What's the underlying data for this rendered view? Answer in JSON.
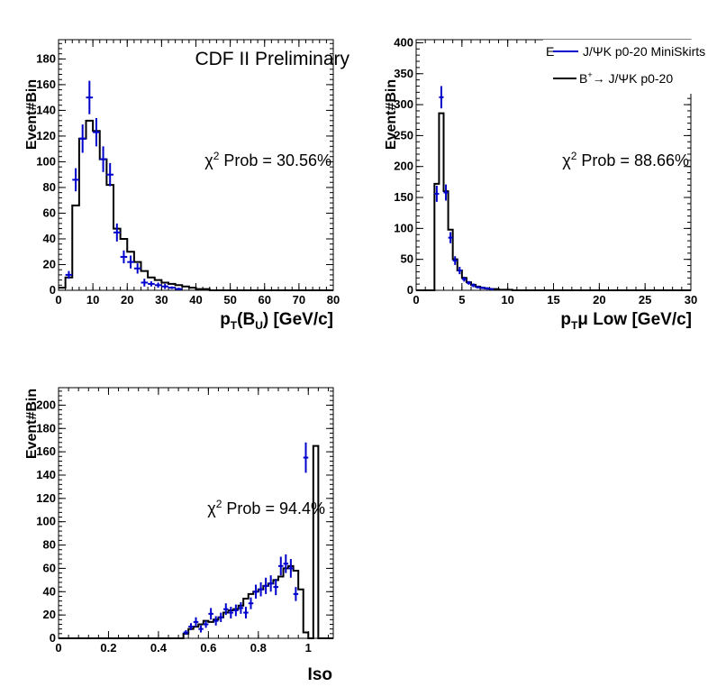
{
  "colors": {
    "mc_line": "#000000",
    "data_points": "#0000cc"
  },
  "legend": {
    "entry_data": "J/ΨK p0-20 MiniSkirts",
    "entry_mc_prefix": "B",
    "entry_mc_super": "+",
    "entry_mc_suffix": "→ J/ΨK p0-20",
    "clipped_char": "E"
  },
  "chart_data": [
    {
      "type": "histogram",
      "title": "CDF II Preliminary",
      "xlabel": {
        "p": "p",
        "sub": "T",
        "mid": "(B",
        "sub2": "U",
        "end": ") [GeV/c]"
      },
      "ylabel": "Event#Bin",
      "annotation": {
        "chi": "χ",
        "sup": "2",
        "text": " Prob = 30.56%"
      },
      "xlim": [
        0,
        80
      ],
      "ylim": [
        0,
        195
      ],
      "xticks": [
        0,
        10,
        20,
        30,
        40,
        50,
        60,
        70,
        80
      ],
      "yticks": [
        0,
        20,
        40,
        60,
        80,
        100,
        120,
        140,
        160,
        180
      ],
      "bin_edges_start": 0,
      "bin_width": 2,
      "series": [
        {
          "name": "B⁺→ J/ΨK p0-20",
          "style": "step",
          "values": [
            2,
            10,
            66,
            118,
            132,
            124,
            102,
            82,
            48,
            40,
            30,
            22,
            15,
            10,
            8,
            6,
            5,
            4,
            3,
            2,
            1,
            1,
            0,
            0,
            0,
            0,
            0,
            0,
            0,
            0,
            0,
            0,
            0,
            0,
            0,
            0,
            0,
            0,
            0,
            0
          ]
        },
        {
          "name": "J/ΨK p0-20 MiniSkirts",
          "style": "points",
          "x": [
            3,
            5,
            7,
            9,
            11,
            13,
            15,
            17,
            19,
            21,
            23,
            25,
            27,
            29,
            31,
            33,
            35
          ],
          "y": [
            12,
            86,
            118,
            150,
            123,
            102,
            90,
            45,
            26,
            22,
            17,
            6,
            5,
            4,
            3,
            2,
            1
          ],
          "err": [
            3,
            9,
            11,
            13,
            11,
            10,
            9,
            7,
            5,
            5,
            4,
            3,
            2,
            2,
            2,
            1,
            1
          ]
        }
      ]
    },
    {
      "type": "histogram",
      "title": "",
      "xlabel": {
        "p": "p",
        "sub": "T",
        "mid": "μ Low [GeV/c]"
      },
      "ylabel": "Event#Bin",
      "annotation": {
        "chi": "χ",
        "sup": "2",
        "text": " Prob = 88.66%"
      },
      "xlim": [
        0,
        30
      ],
      "ylim": [
        0,
        405
      ],
      "xticks": [
        0,
        5,
        10,
        15,
        20,
        25,
        30
      ],
      "yticks": [
        0,
        50,
        100,
        150,
        200,
        250,
        300,
        350,
        400
      ],
      "bin_edges_start": 0,
      "bin_width": 0.5,
      "series": [
        {
          "name": "B⁺→ J/ΨK p0-20",
          "style": "step",
          "values": [
            0,
            0,
            0,
            0,
            172,
            286,
            160,
            98,
            50,
            32,
            20,
            13,
            9,
            6,
            4,
            3,
            2,
            2,
            1,
            1,
            1,
            0,
            0,
            0,
            0,
            0,
            0,
            0,
            0,
            0,
            0,
            0,
            0,
            0,
            0,
            0,
            0,
            0,
            0,
            0,
            0,
            0,
            0,
            0,
            0,
            0,
            0,
            0,
            0,
            0,
            0,
            0,
            0,
            0,
            0,
            0,
            0,
            0,
            0,
            0
          ]
        },
        {
          "name": "J/ΨK p0-20 MiniSkirts",
          "style": "points",
          "x": [
            2.25,
            2.75,
            3.25,
            3.75,
            4.25,
            4.75,
            5.25,
            5.75,
            6.25,
            6.75,
            7.25,
            7.75,
            8.25
          ],
          "y": [
            156,
            312,
            158,
            85,
            48,
            32,
            18,
            12,
            8,
            5,
            4,
            3,
            2
          ],
          "err": [
            13,
            18,
            13,
            9,
            7,
            6,
            4,
            3,
            3,
            2,
            2,
            2,
            1
          ]
        }
      ]
    },
    {
      "type": "histogram",
      "title": "",
      "xlabel": {
        "p": "Iso"
      },
      "ylabel": "Event#Bin",
      "annotation": {
        "chi": "χ",
        "sup": "2",
        "text": " Prob = 94.4%"
      },
      "xlim": [
        0,
        1.1
      ],
      "ylim": [
        0,
        215
      ],
      "xticks": [
        0,
        0.2,
        0.4,
        0.6,
        0.8,
        1
      ],
      "yticks": [
        0,
        20,
        40,
        60,
        80,
        100,
        120,
        140,
        160,
        180,
        200
      ],
      "bin_edges_start": 0,
      "bin_width": 0.02,
      "series": [
        {
          "name": "B⁺→ J/ΨK p0-20",
          "style": "step",
          "values": [
            0,
            0,
            0,
            0,
            0,
            0,
            0,
            0,
            0,
            0,
            0,
            0,
            0,
            0,
            0,
            0,
            0,
            0,
            0,
            0,
            0,
            0,
            0,
            0,
            0,
            4,
            8,
            10,
            12,
            15,
            14,
            16,
            18,
            22,
            24,
            25,
            28,
            34,
            38,
            40,
            42,
            45,
            47,
            50,
            53,
            60,
            62,
            58,
            42,
            5,
            0,
            165,
            0,
            0,
            0
          ]
        },
        {
          "name": "J/ΨK p0-20 MiniSkirts",
          "style": "points",
          "x": [
            0.51,
            0.53,
            0.55,
            0.57,
            0.59,
            0.61,
            0.63,
            0.65,
            0.67,
            0.69,
            0.71,
            0.73,
            0.75,
            0.77,
            0.79,
            0.81,
            0.83,
            0.85,
            0.87,
            0.89,
            0.91,
            0.93,
            0.95,
            0.99
          ],
          "y": [
            5,
            10,
            14,
            8,
            12,
            21,
            15,
            18,
            25,
            22,
            24,
            26,
            22,
            30,
            40,
            42,
            45,
            47,
            44,
            62,
            64,
            60,
            38,
            155
          ],
          "err": [
            2,
            3,
            4,
            3,
            3,
            5,
            4,
            4,
            5,
            5,
            5,
            5,
            5,
            5,
            6,
            6,
            7,
            7,
            7,
            8,
            8,
            8,
            6,
            13
          ]
        }
      ]
    }
  ]
}
